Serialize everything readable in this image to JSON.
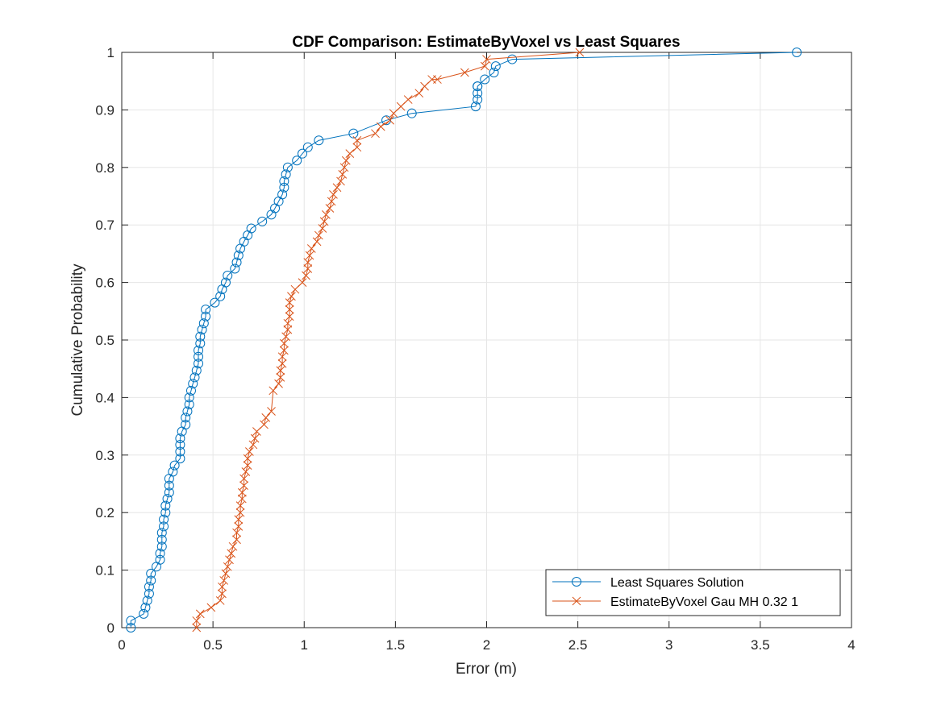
{
  "chart_data": {
    "type": "line",
    "title": "CDF Comparison: EstimateByVoxel vs Least Squares",
    "xlabel": "Error (m)",
    "ylabel": "Cumulative Probability",
    "xlim": [
      0,
      4
    ],
    "ylim": [
      0,
      1
    ],
    "xticks": [
      "0",
      "0.5",
      "1",
      "1.5",
      "2",
      "2.5",
      "3",
      "3.5",
      "4"
    ],
    "yticks": [
      "0",
      "0.1",
      "0.2",
      "0.3",
      "0.4",
      "0.5",
      "0.6",
      "0.7",
      "0.8",
      "0.9",
      "1"
    ],
    "grid": true,
    "legend_position": "bottom-right",
    "series": [
      {
        "name": "Least Squares Solution",
        "color": "#0072BD",
        "marker": "circle",
        "x": [
          0.05,
          0.05,
          0.12,
          0.13,
          0.14,
          0.15,
          0.15,
          0.16,
          0.16,
          0.19,
          0.21,
          0.21,
          0.22,
          0.22,
          0.22,
          0.23,
          0.23,
          0.24,
          0.24,
          0.25,
          0.26,
          0.26,
          0.26,
          0.28,
          0.29,
          0.32,
          0.32,
          0.32,
          0.32,
          0.33,
          0.35,
          0.35,
          0.36,
          0.37,
          0.37,
          0.38,
          0.39,
          0.4,
          0.41,
          0.42,
          0.42,
          0.42,
          0.43,
          0.43,
          0.44,
          0.45,
          0.46,
          0.46,
          0.51,
          0.54,
          0.55,
          0.57,
          0.58,
          0.62,
          0.63,
          0.64,
          0.65,
          0.67,
          0.69,
          0.71,
          0.77,
          0.82,
          0.84,
          0.86,
          0.88,
          0.89,
          0.89,
          0.9,
          0.91,
          0.96,
          0.99,
          1.02,
          1.08,
          1.27,
          1.45,
          1.59,
          1.94,
          1.95,
          1.95,
          1.95,
          1.95,
          1.99,
          2.04,
          2.05,
          2.14,
          3.7
        ],
        "y": [
          0,
          0.012,
          0.024,
          0.035,
          0.047,
          0.059,
          0.071,
          0.082,
          0.094,
          0.106,
          0.118,
          0.129,
          0.141,
          0.153,
          0.165,
          0.176,
          0.188,
          0.2,
          0.212,
          0.224,
          0.235,
          0.247,
          0.259,
          0.271,
          0.282,
          0.294,
          0.306,
          0.318,
          0.329,
          0.341,
          0.353,
          0.365,
          0.376,
          0.388,
          0.4,
          0.412,
          0.424,
          0.435,
          0.447,
          0.459,
          0.471,
          0.482,
          0.494,
          0.506,
          0.518,
          0.529,
          0.541,
          0.553,
          0.565,
          0.576,
          0.588,
          0.6,
          0.612,
          0.624,
          0.635,
          0.647,
          0.659,
          0.671,
          0.682,
          0.694,
          0.706,
          0.718,
          0.729,
          0.741,
          0.753,
          0.765,
          0.776,
          0.788,
          0.8,
          0.812,
          0.824,
          0.835,
          0.847,
          0.859,
          0.882,
          0.894,
          0.906,
          0.918,
          0.929,
          0.941,
          0.941,
          0.953,
          0.965,
          0.976,
          0.988,
          1.0
        ]
      },
      {
        "name": "EstimateByVoxel Gau MH 0.32 1",
        "color": "#D95319",
        "marker": "x",
        "x": [
          0.41,
          0.41,
          0.43,
          0.49,
          0.54,
          0.55,
          0.55,
          0.56,
          0.57,
          0.58,
          0.59,
          0.6,
          0.61,
          0.63,
          0.63,
          0.64,
          0.64,
          0.65,
          0.65,
          0.66,
          0.66,
          0.67,
          0.67,
          0.68,
          0.69,
          0.69,
          0.7,
          0.72,
          0.73,
          0.74,
          0.78,
          0.79,
          0.82,
          0.83,
          0.86,
          0.87,
          0.87,
          0.88,
          0.88,
          0.89,
          0.89,
          0.9,
          0.91,
          0.91,
          0.92,
          0.92,
          0.92,
          0.93,
          0.95,
          0.99,
          1.01,
          1.02,
          1.02,
          1.03,
          1.04,
          1.07,
          1.08,
          1.1,
          1.11,
          1.12,
          1.14,
          1.15,
          1.16,
          1.18,
          1.2,
          1.21,
          1.22,
          1.23,
          1.25,
          1.29,
          1.29,
          1.39,
          1.42,
          1.47,
          1.49,
          1.53,
          1.57,
          1.63,
          1.66,
          1.7,
          1.73,
          1.88,
          1.99,
          2.0,
          2.51
        ],
        "y": [
          0,
          0.012,
          0.024,
          0.035,
          0.047,
          0.059,
          0.071,
          0.082,
          0.094,
          0.106,
          0.118,
          0.129,
          0.141,
          0.153,
          0.165,
          0.176,
          0.188,
          0.2,
          0.212,
          0.224,
          0.235,
          0.247,
          0.259,
          0.271,
          0.282,
          0.294,
          0.306,
          0.318,
          0.329,
          0.341,
          0.353,
          0.365,
          0.376,
          0.412,
          0.424,
          0.435,
          0.447,
          0.459,
          0.471,
          0.482,
          0.494,
          0.506,
          0.518,
          0.529,
          0.541,
          0.553,
          0.565,
          0.576,
          0.588,
          0.6,
          0.612,
          0.624,
          0.635,
          0.647,
          0.659,
          0.671,
          0.682,
          0.694,
          0.706,
          0.718,
          0.729,
          0.741,
          0.753,
          0.765,
          0.776,
          0.788,
          0.8,
          0.812,
          0.824,
          0.835,
          0.847,
          0.859,
          0.871,
          0.882,
          0.894,
          0.906,
          0.918,
          0.929,
          0.941,
          0.953,
          0.953,
          0.965,
          0.976,
          0.988,
          1.0
        ]
      }
    ]
  }
}
